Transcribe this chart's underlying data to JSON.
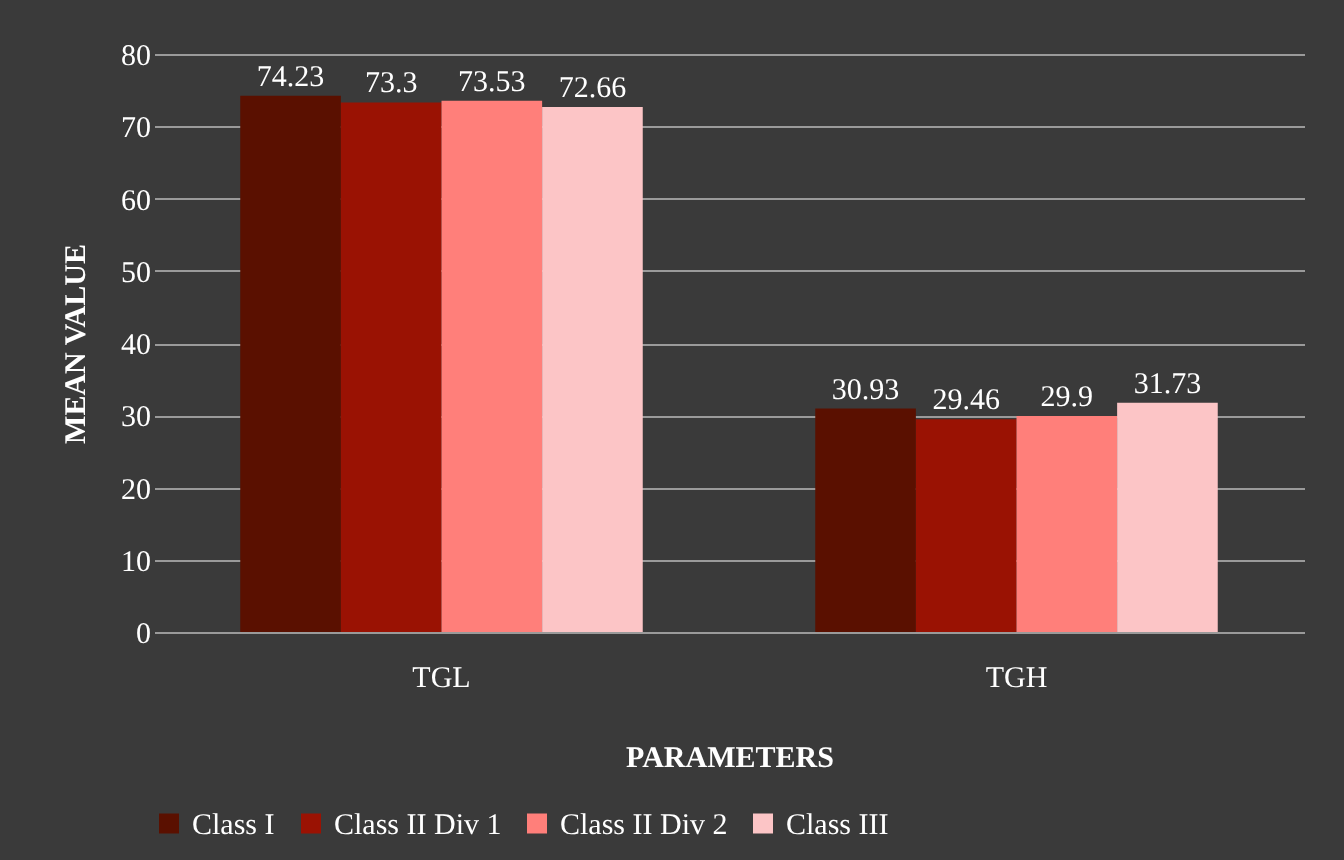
{
  "chart_data": {
    "type": "bar",
    "xlabel": "PARAMETERS",
    "ylabel": "MEAN VALUE",
    "categories": [
      "TGL",
      "TGH"
    ],
    "series": [
      {
        "name": "Class I",
        "color": "#5a1000",
        "values": [
          74.23,
          30.93
        ]
      },
      {
        "name": "Class II Div 1",
        "color": "#9a1203",
        "values": [
          73.3,
          29.46
        ]
      },
      {
        "name": "Class II Div 2",
        "color": "#ff7f7a",
        "values": [
          73.53,
          29.9
        ]
      },
      {
        "name": "Class III",
        "color": "#fcc5c6",
        "values": [
          72.66,
          31.73
        ]
      }
    ],
    "ylim": [
      0,
      80
    ],
    "yticks": [
      0,
      10,
      20,
      30,
      40,
      50,
      60,
      70,
      80
    ],
    "grid": "y",
    "legend": "bottom",
    "data_labels": true
  }
}
